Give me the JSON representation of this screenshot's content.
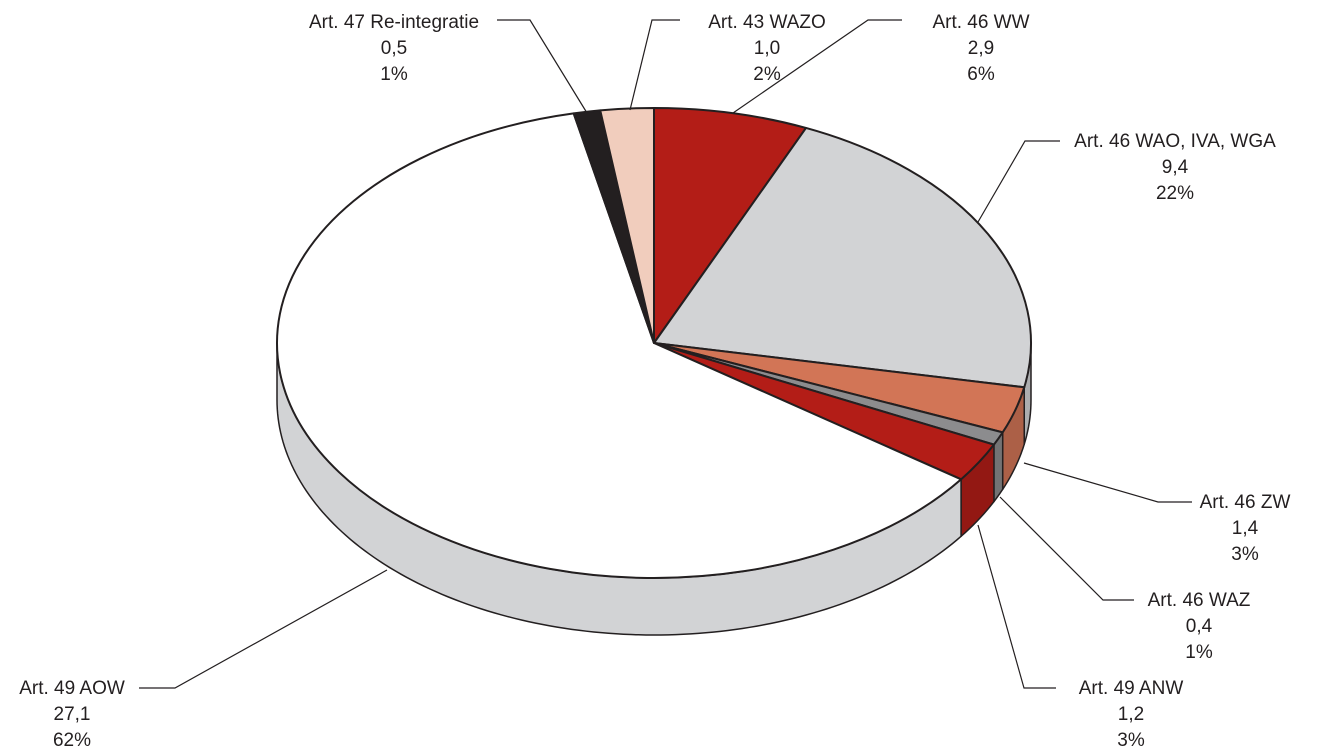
{
  "chart_data": {
    "type": "pie",
    "style": "3d",
    "start_angle": "12 o'clock",
    "direction": "clockwise",
    "slices": [
      {
        "name": "Art. 46 WW",
        "value": 2.9,
        "value_label": "2,9",
        "percent_label": "6%",
        "color": "#b31d17"
      },
      {
        "name": "Art. 46 WAO, IVA, WGA",
        "value": 9.4,
        "value_label": "9,4",
        "percent_label": "22%",
        "color": "#d2d3d5"
      },
      {
        "name": "Art. 46 ZW",
        "value": 1.4,
        "value_label": "1,4",
        "percent_label": "3%",
        "color": "#d27556"
      },
      {
        "name": "Art. 46 WAZ",
        "value": 0.4,
        "value_label": "0,4",
        "percent_label": "1%",
        "color": "#8c8c8e"
      },
      {
        "name": "Art. 49 ANW",
        "value": 1.2,
        "value_label": "1,2",
        "percent_label": "3%",
        "color": "#b31d17"
      },
      {
        "name": "Art. 49 AOW",
        "value": 27.1,
        "value_label": "27,1",
        "percent_label": "62%",
        "color": "#ffffff"
      },
      {
        "name": "Art. 47 Re-integratie",
        "value": 0.5,
        "value_label": "0,5",
        "percent_label": "1%",
        "color": "#231f20"
      },
      {
        "name": "Art. 43 WAZO",
        "value": 1.0,
        "value_label": "1,0",
        "percent_label": "2%",
        "color": "#f1cdbd"
      }
    ]
  }
}
